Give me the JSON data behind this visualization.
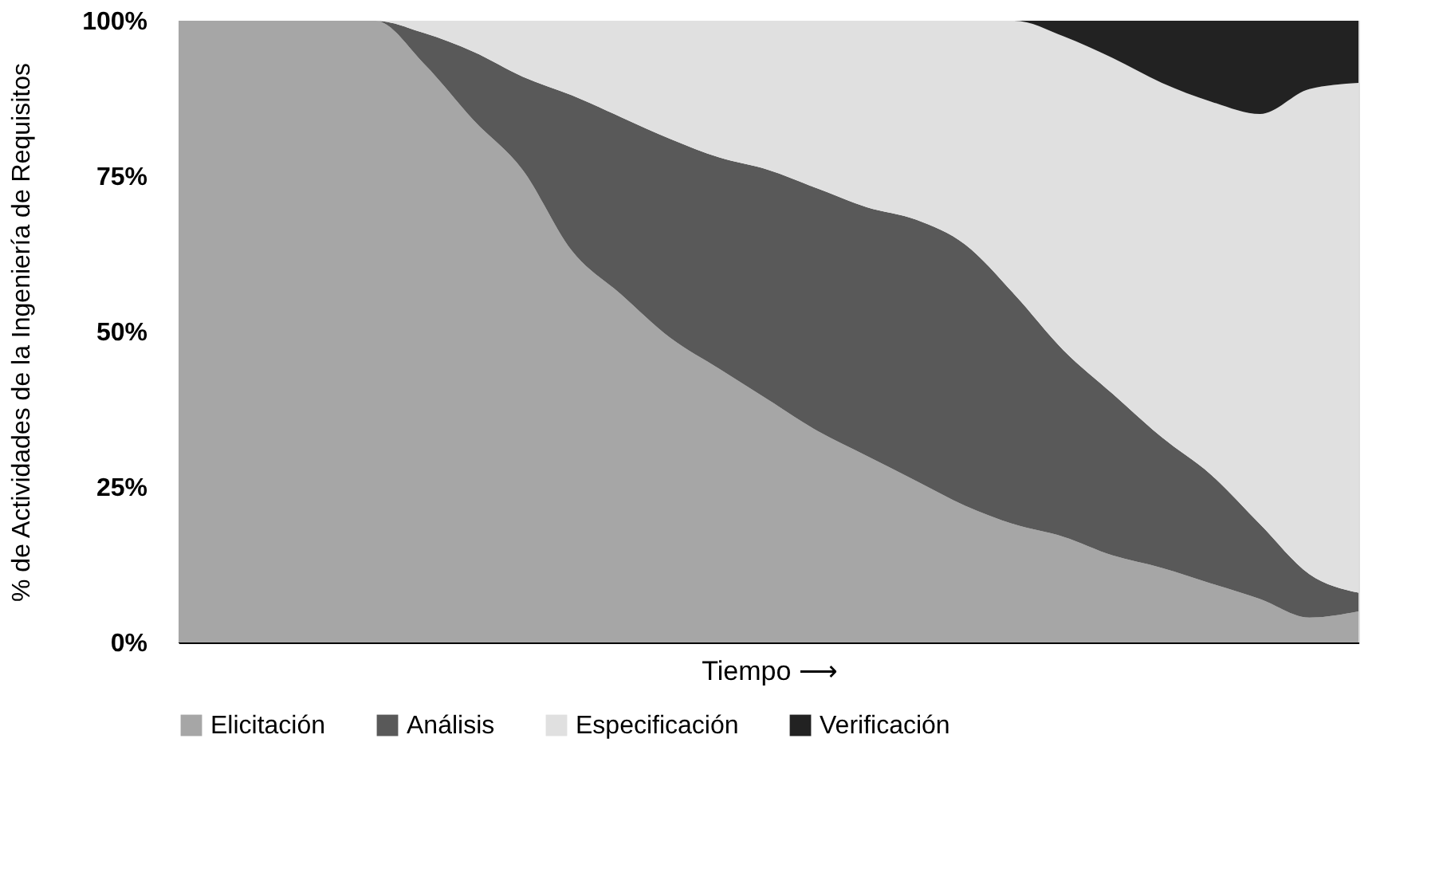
{
  "chart_data": {
    "type": "area",
    "stacked": true,
    "xlabel": "Tiempo ⟶",
    "ylabel": "% de Actividades de la Ingeniería de Requisitos",
    "categories": [
      null,
      null,
      null,
      null,
      null,
      null,
      null,
      null,
      null,
      null,
      null,
      null,
      null,
      null,
      null,
      null,
      null,
      null,
      null,
      null,
      null,
      null,
      null,
      null,
      null
    ],
    "series": [
      {
        "name": "Elicitación",
        "color": "#a6a6a6",
        "values": [
          100,
          100,
          100,
          100,
          100,
          93,
          84,
          76,
          63,
          56,
          49,
          44,
          39,
          34,
          30,
          26,
          22,
          19,
          17,
          14,
          12,
          9.5,
          7,
          4,
          5
        ]
      },
      {
        "name": "Análisis",
        "color": "#595959",
        "values": [
          0,
          0,
          0,
          0,
          0,
          5,
          11,
          15,
          25,
          28.5,
          32,
          34,
          37,
          39,
          40,
          42,
          42,
          37,
          30,
          26,
          21,
          17.5,
          12,
          7,
          3
        ]
      },
      {
        "name": "Especificación",
        "color": "#e0e0e0",
        "values": [
          0,
          0,
          0,
          0,
          0,
          2,
          5,
          9,
          12,
          15.5,
          19,
          22,
          24,
          27,
          30,
          32,
          36,
          44,
          50.5,
          54,
          57,
          60,
          66,
          78,
          82
        ]
      },
      {
        "name": "Verificación",
        "color": "#222222",
        "values": [
          0,
          0,
          0,
          0,
          0,
          0,
          0,
          0,
          0,
          0,
          0,
          0,
          0,
          0,
          0,
          0,
          0,
          0,
          2.5,
          6,
          10,
          13,
          15,
          11,
          10
        ]
      }
    ],
    "ylim": [
      0,
      100
    ],
    "yticks": [
      {
        "value": 0,
        "label": "0%"
      },
      {
        "value": 25,
        "label": "25%"
      },
      {
        "value": 50,
        "label": "50%"
      },
      {
        "value": 75,
        "label": "75%"
      },
      {
        "value": 100,
        "label": "100%"
      }
    ],
    "grid": false,
    "legend": "bottom",
    "tick_labels": "y"
  }
}
